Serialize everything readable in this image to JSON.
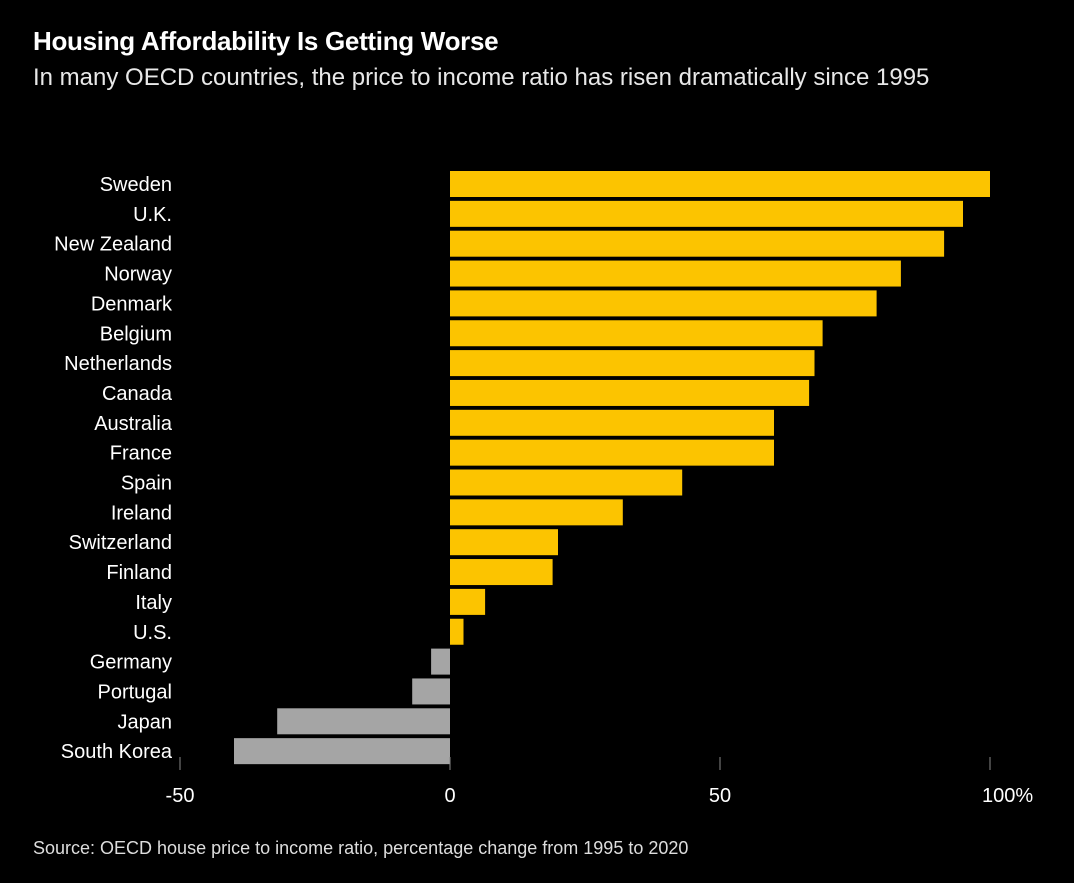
{
  "title": "Housing Affordability Is Getting Worse",
  "subtitle": "In many OECD countries, the price to income ratio has risen dramatically since 1995",
  "source": "Source: OECD house price to income ratio, percentage change from 1995 to 2020",
  "chart_data": {
    "type": "bar",
    "orientation": "horizontal",
    "title": "Housing Affordability Is Getting Worse",
    "xlabel": "",
    "ylabel": "",
    "xlim": [
      -50,
      100
    ],
    "x_ticks": [
      "-50",
      "0",
      "50",
      "100%"
    ],
    "x_tick_values": [
      -50,
      0,
      50,
      100
    ],
    "categories": [
      "Sweden",
      "U.K.",
      "New Zealand",
      "Norway",
      "Denmark",
      "Belgium",
      "Netherlands",
      "Canada",
      "Australia",
      "France",
      "Spain",
      "Ireland",
      "Switzerland",
      "Finland",
      "Italy",
      "U.S.",
      "Germany",
      "Portugal",
      "Japan",
      "South Korea"
    ],
    "values": [
      100,
      95,
      91.5,
      83.5,
      79,
      69,
      67.5,
      66.5,
      60,
      60,
      43,
      32,
      20,
      19,
      6.5,
      2.5,
      -3.5,
      -7,
      -32,
      -40
    ],
    "colors": {
      "positive": "#fcc400",
      "negative": "#a5a5a5"
    },
    "grid": false
  }
}
